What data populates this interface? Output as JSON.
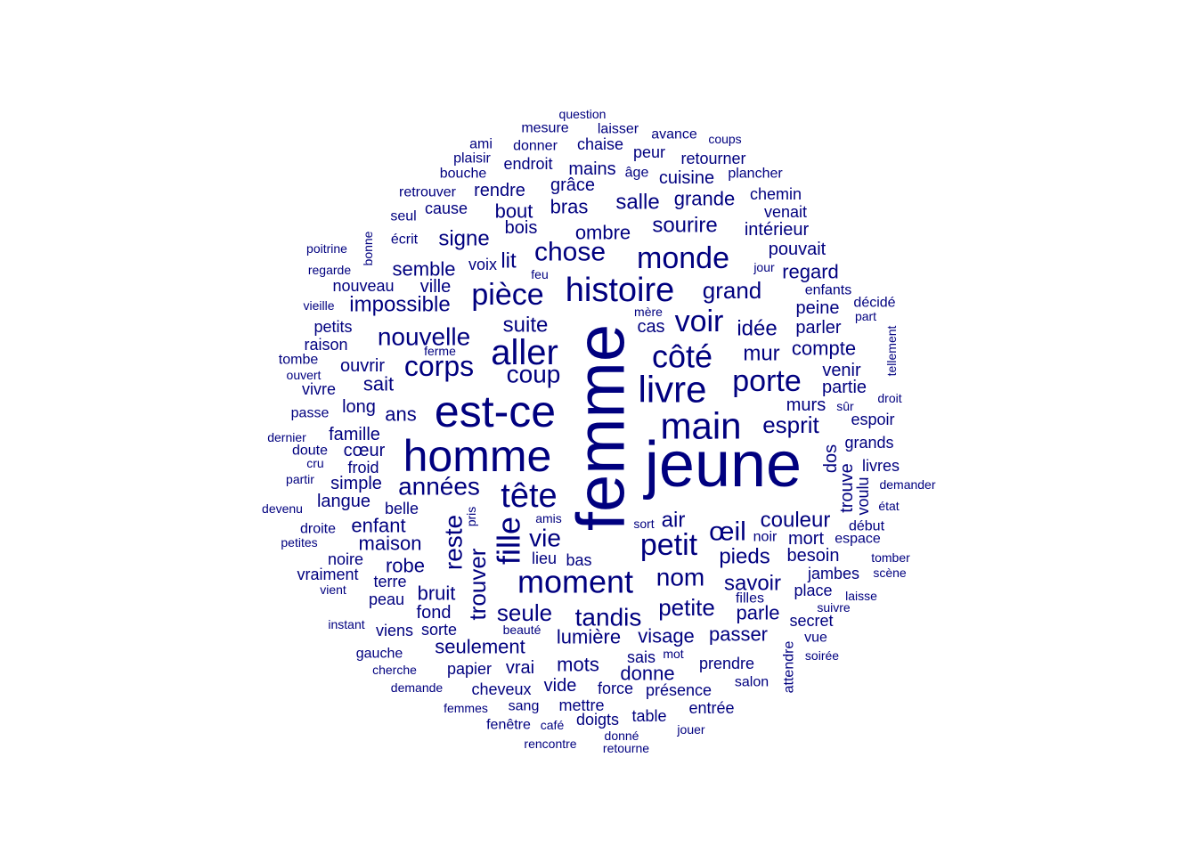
{
  "chart_data": {
    "type": "wordcloud",
    "color": "#00007f",
    "words": [
      {
        "text": "femme",
        "rot": true
      },
      {
        "text": "jeune"
      },
      {
        "text": "est-ce"
      },
      {
        "text": "homme"
      },
      {
        "text": "main"
      },
      {
        "text": "livre"
      },
      {
        "text": "aller"
      },
      {
        "text": "histoire"
      },
      {
        "text": "tête"
      },
      {
        "text": "moment"
      },
      {
        "text": "pièce"
      },
      {
        "text": "côté"
      },
      {
        "text": "monde"
      },
      {
        "text": "petit"
      },
      {
        "text": "corps"
      },
      {
        "text": "porte"
      },
      {
        "text": "voir"
      },
      {
        "text": "fille",
        "rot": true
      },
      {
        "text": "œil"
      },
      {
        "text": "chose"
      },
      {
        "text": "nouvelle"
      },
      {
        "text": "années"
      },
      {
        "text": "reste",
        "rot": true
      },
      {
        "text": "tandis"
      },
      {
        "text": "trouver",
        "rot": true
      },
      {
        "text": "vie"
      },
      {
        "text": "coup"
      },
      {
        "text": "seule"
      },
      {
        "text": "nom"
      },
      {
        "text": "esprit"
      },
      {
        "text": "grand"
      },
      {
        "text": "petite"
      },
      {
        "text": "suite"
      },
      {
        "text": "idée"
      },
      {
        "text": "couleur"
      },
      {
        "text": "savoir"
      },
      {
        "text": "pieds"
      },
      {
        "text": "signe"
      },
      {
        "text": "sourire"
      },
      {
        "text": "impossible"
      },
      {
        "text": "salle"
      },
      {
        "text": "lumière"
      },
      {
        "text": "visage"
      },
      {
        "text": "semble"
      },
      {
        "text": "mur"
      },
      {
        "text": "compte"
      },
      {
        "text": "bout"
      },
      {
        "text": "bras"
      },
      {
        "text": "ombre"
      },
      {
        "text": "enfant"
      },
      {
        "text": "maison"
      },
      {
        "text": "robe"
      },
      {
        "text": "bruit"
      },
      {
        "text": "parle"
      },
      {
        "text": "passer"
      },
      {
        "text": "air"
      },
      {
        "text": "mots"
      },
      {
        "text": "donne"
      },
      {
        "text": "seulement"
      },
      {
        "text": "grande"
      },
      {
        "text": "regard"
      },
      {
        "text": "intérieur"
      },
      {
        "text": "pouvait"
      },
      {
        "text": "peine"
      },
      {
        "text": "parler"
      },
      {
        "text": "murs"
      },
      {
        "text": "besoin"
      },
      {
        "text": "mort"
      },
      {
        "text": "langue"
      },
      {
        "text": "famille"
      },
      {
        "text": "cœur"
      },
      {
        "text": "simple"
      },
      {
        "text": "ans"
      },
      {
        "text": "long"
      },
      {
        "text": "sait"
      },
      {
        "text": "ouvrir"
      },
      {
        "text": "rendre"
      },
      {
        "text": "grâce"
      },
      {
        "text": "mains"
      },
      {
        "text": "cuisine"
      },
      {
        "text": "retourner"
      },
      {
        "text": "chemin"
      },
      {
        "text": "venait"
      },
      {
        "text": "bois"
      },
      {
        "text": "lit"
      },
      {
        "text": "voix"
      },
      {
        "text": "ville"
      },
      {
        "text": "nouveau"
      },
      {
        "text": "cas"
      },
      {
        "text": "venir"
      },
      {
        "text": "partie"
      },
      {
        "text": "espoir"
      },
      {
        "text": "grands"
      },
      {
        "text": "livres"
      },
      {
        "text": "dos",
        "rot": true
      },
      {
        "text": "trouve",
        "rot": true
      },
      {
        "text": "voulu",
        "rot": true
      },
      {
        "text": "jambes"
      },
      {
        "text": "place"
      },
      {
        "text": "secret"
      },
      {
        "text": "prendre"
      },
      {
        "text": "présence"
      },
      {
        "text": "vide"
      },
      {
        "text": "force"
      },
      {
        "text": "vrai"
      },
      {
        "text": "papier"
      },
      {
        "text": "cheveux"
      },
      {
        "text": "mettre"
      },
      {
        "text": "doigts"
      },
      {
        "text": "table"
      },
      {
        "text": "entrée"
      },
      {
        "text": "fond"
      },
      {
        "text": "sorte"
      },
      {
        "text": "viens"
      },
      {
        "text": "peau"
      },
      {
        "text": "terre"
      },
      {
        "text": "noire"
      },
      {
        "text": "vraiment"
      },
      {
        "text": "lieu"
      },
      {
        "text": "bas"
      },
      {
        "text": "salon"
      },
      {
        "text": "sais"
      },
      {
        "text": "vue"
      },
      {
        "text": "attendre",
        "rot": true
      },
      {
        "text": "gauche"
      },
      {
        "text": "sang"
      },
      {
        "text": "fenêtre"
      },
      {
        "text": "cause"
      },
      {
        "text": "endroit"
      },
      {
        "text": "chaise"
      },
      {
        "text": "peur"
      },
      {
        "text": "plancher"
      },
      {
        "text": "âge"
      },
      {
        "text": "enfants"
      },
      {
        "text": "décidé"
      },
      {
        "text": "tellement",
        "rot": true
      },
      {
        "text": "raison"
      },
      {
        "text": "petits"
      },
      {
        "text": "vivre"
      },
      {
        "text": "tombe"
      },
      {
        "text": "froid"
      },
      {
        "text": "belle"
      },
      {
        "text": "droite"
      },
      {
        "text": "début"
      },
      {
        "text": "espace"
      },
      {
        "text": "noir"
      },
      {
        "text": "filles"
      },
      {
        "text": "suivre"
      },
      {
        "text": "laisse"
      },
      {
        "text": "avance"
      },
      {
        "text": "mesure"
      },
      {
        "text": "laisser"
      },
      {
        "text": "donner"
      },
      {
        "text": "plaisir"
      },
      {
        "text": "bouche"
      },
      {
        "text": "retrouver"
      },
      {
        "text": "seul"
      },
      {
        "text": "écrit"
      },
      {
        "text": "bonne",
        "rot": true
      },
      {
        "text": "ami"
      },
      {
        "text": "question"
      },
      {
        "text": "coups"
      },
      {
        "text": "poitrine"
      },
      {
        "text": "regarde"
      },
      {
        "text": "jour"
      },
      {
        "text": "feu"
      },
      {
        "text": "mère"
      },
      {
        "text": "vieille"
      },
      {
        "text": "part"
      },
      {
        "text": "ferme"
      },
      {
        "text": "ouvert"
      },
      {
        "text": "passe"
      },
      {
        "text": "dernier"
      },
      {
        "text": "doute"
      },
      {
        "text": "cru"
      },
      {
        "text": "partir"
      },
      {
        "text": "devenu"
      },
      {
        "text": "petites"
      },
      {
        "text": "vient"
      },
      {
        "text": "instant"
      },
      {
        "text": "pris",
        "rot": true
      },
      {
        "text": "amis"
      },
      {
        "text": "sort"
      },
      {
        "text": "beauté"
      },
      {
        "text": "mot"
      },
      {
        "text": "cherche"
      },
      {
        "text": "demande"
      },
      {
        "text": "femmes"
      },
      {
        "text": "café"
      },
      {
        "text": "rencontre"
      },
      {
        "text": "donné"
      },
      {
        "text": "retourne"
      },
      {
        "text": "jouer"
      },
      {
        "text": "soirée"
      },
      {
        "text": "scène"
      },
      {
        "text": "tomber"
      },
      {
        "text": "état"
      },
      {
        "text": "demander"
      },
      {
        "text": "droit"
      },
      {
        "text": "sûr"
      }
    ]
  }
}
